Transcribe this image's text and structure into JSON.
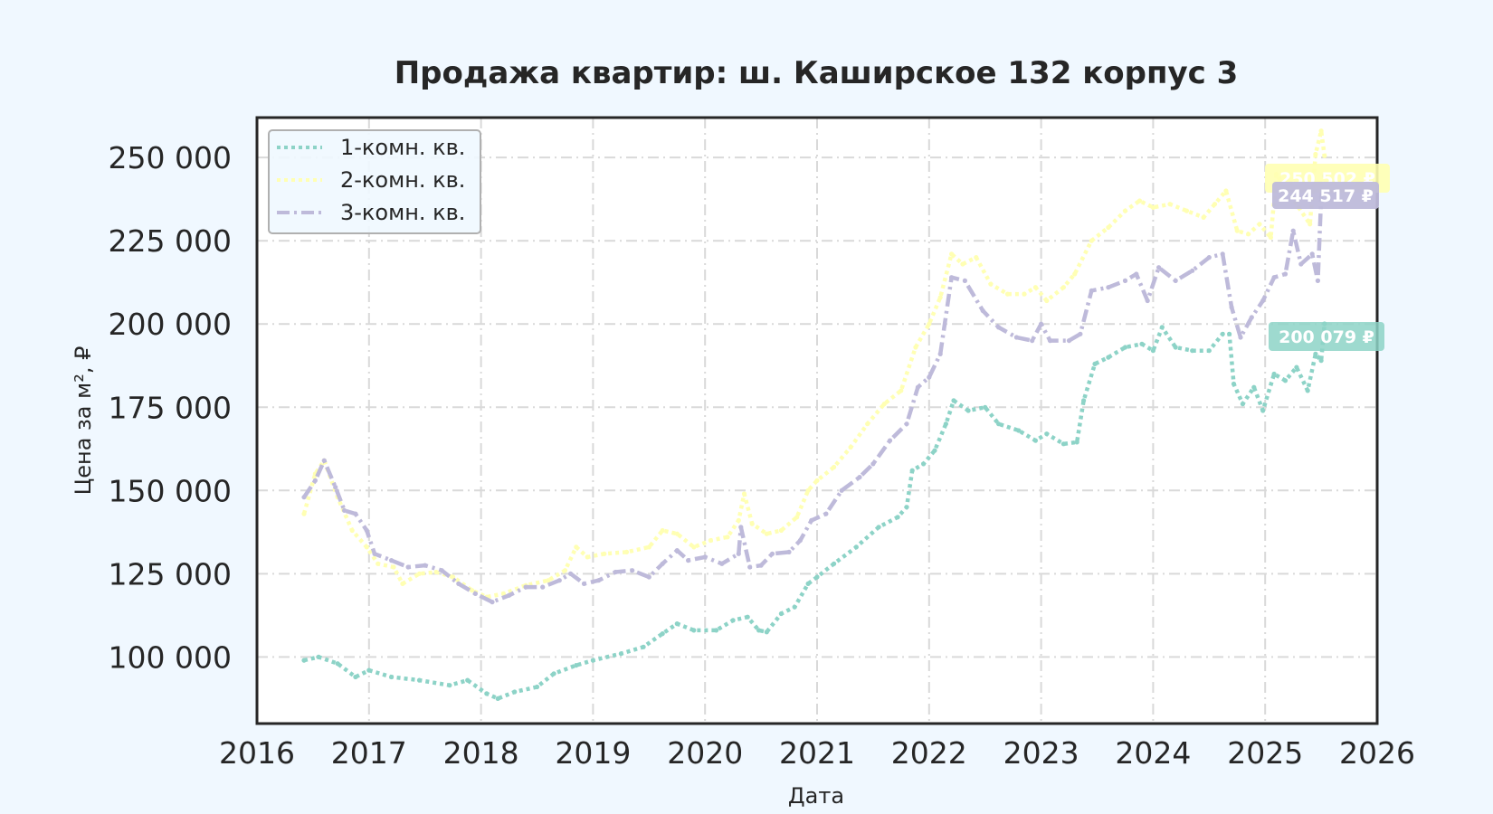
{
  "chart_data": {
    "type": "line",
    "title": "Продажа квартир: ш. Каширское 132 корпус 3",
    "xlabel": "Дата",
    "ylabel": "Цена за м², ₽",
    "xlim": [
      2016,
      2026
    ],
    "ylim": [
      80000,
      262000
    ],
    "x_ticks": [
      "2016",
      "2017",
      "2018",
      "2019",
      "2020",
      "2021",
      "2022",
      "2023",
      "2024",
      "2025",
      "2026"
    ],
    "y_ticks": [
      {
        "value": 100000,
        "label": "100 000"
      },
      {
        "value": 125000,
        "label": "125 000"
      },
      {
        "value": 150000,
        "label": "150 000"
      },
      {
        "value": 175000,
        "label": "175 000"
      },
      {
        "value": 200000,
        "label": "200 000"
      },
      {
        "value": 225000,
        "label": "225 000"
      },
      {
        "value": 250000,
        "label": "250 000"
      }
    ],
    "grid": true,
    "legend_position": "top-left",
    "series": [
      {
        "name": "1-комн. кв.",
        "color": "#8dd3c7",
        "line_style": "dotted",
        "end_label": "200 079 ₽",
        "points": [
          [
            2016.42,
            99000
          ],
          [
            2016.55,
            100000
          ],
          [
            2016.72,
            98000
          ],
          [
            2016.88,
            94000
          ],
          [
            2017.0,
            96000
          ],
          [
            2017.2,
            94000
          ],
          [
            2017.45,
            93000
          ],
          [
            2017.72,
            91500
          ],
          [
            2017.88,
            93000
          ],
          [
            2018.05,
            89000
          ],
          [
            2018.15,
            87500
          ],
          [
            2018.3,
            89500
          ],
          [
            2018.5,
            91000
          ],
          [
            2018.65,
            95000
          ],
          [
            2018.85,
            97500
          ],
          [
            2019.0,
            99000
          ],
          [
            2019.25,
            101000
          ],
          [
            2019.45,
            103000
          ],
          [
            2019.62,
            107000
          ],
          [
            2019.75,
            110000
          ],
          [
            2019.9,
            108000
          ],
          [
            2020.1,
            108000
          ],
          [
            2020.25,
            111000
          ],
          [
            2020.38,
            112000
          ],
          [
            2020.48,
            108000
          ],
          [
            2020.55,
            107500
          ],
          [
            2020.68,
            113000
          ],
          [
            2020.8,
            115000
          ],
          [
            2020.92,
            122000
          ],
          [
            2021.0,
            124000
          ],
          [
            2021.15,
            128000
          ],
          [
            2021.35,
            133000
          ],
          [
            2021.55,
            139000
          ],
          [
            2021.72,
            142000
          ],
          [
            2021.8,
            145000
          ],
          [
            2021.85,
            156000
          ],
          [
            2021.95,
            158000
          ],
          [
            2022.05,
            162000
          ],
          [
            2022.15,
            170000
          ],
          [
            2022.22,
            177000
          ],
          [
            2022.35,
            174000
          ],
          [
            2022.5,
            175000
          ],
          [
            2022.62,
            170000
          ],
          [
            2022.8,
            168000
          ],
          [
            2022.95,
            165000
          ],
          [
            2023.05,
            167000
          ],
          [
            2023.2,
            164000
          ],
          [
            2023.32,
            164500
          ],
          [
            2023.38,
            177000
          ],
          [
            2023.48,
            188000
          ],
          [
            2023.6,
            190000
          ],
          [
            2023.75,
            193000
          ],
          [
            2023.9,
            194000
          ],
          [
            2024.0,
            192000
          ],
          [
            2024.08,
            199000
          ],
          [
            2024.2,
            193000
          ],
          [
            2024.35,
            192000
          ],
          [
            2024.5,
            192000
          ],
          [
            2024.62,
            197000
          ],
          [
            2024.68,
            197000
          ],
          [
            2024.72,
            182000
          ],
          [
            2024.8,
            176000
          ],
          [
            2024.9,
            181000
          ],
          [
            2024.98,
            174000
          ],
          [
            2025.08,
            185000
          ],
          [
            2025.18,
            183000
          ],
          [
            2025.28,
            187000
          ],
          [
            2025.38,
            180000
          ],
          [
            2025.45,
            191000
          ],
          [
            2025.5,
            189000
          ],
          [
            2025.53,
            200079
          ]
        ]
      },
      {
        "name": "2-комн. кв.",
        "color": "#ffffb3",
        "line_style": "dotted",
        "end_label": "250 502 ₽",
        "points": [
          [
            2016.42,
            143000
          ],
          [
            2016.52,
            155000
          ],
          [
            2016.6,
            159000
          ],
          [
            2016.72,
            148000
          ],
          [
            2016.85,
            138000
          ],
          [
            2016.98,
            133000
          ],
          [
            2017.08,
            128000
          ],
          [
            2017.22,
            127000
          ],
          [
            2017.3,
            122000
          ],
          [
            2017.45,
            125000
          ],
          [
            2017.6,
            125500
          ],
          [
            2017.75,
            124000
          ],
          [
            2017.92,
            120000
          ],
          [
            2018.05,
            118000
          ],
          [
            2018.2,
            119000
          ],
          [
            2018.4,
            121500
          ],
          [
            2018.6,
            123000
          ],
          [
            2018.75,
            126000
          ],
          [
            2018.85,
            133000
          ],
          [
            2018.95,
            130000
          ],
          [
            2019.1,
            131000
          ],
          [
            2019.3,
            131500
          ],
          [
            2019.5,
            133000
          ],
          [
            2019.62,
            138000
          ],
          [
            2019.75,
            137000
          ],
          [
            2019.9,
            133000
          ],
          [
            2020.05,
            135000
          ],
          [
            2020.2,
            136000
          ],
          [
            2020.3,
            141000
          ],
          [
            2020.35,
            149000
          ],
          [
            2020.42,
            140000
          ],
          [
            2020.55,
            137000
          ],
          [
            2020.68,
            138000
          ],
          [
            2020.82,
            142000
          ],
          [
            2020.92,
            150000
          ],
          [
            2021.0,
            153000
          ],
          [
            2021.15,
            157000
          ],
          [
            2021.3,
            163000
          ],
          [
            2021.45,
            170000
          ],
          [
            2021.6,
            176000
          ],
          [
            2021.75,
            180000
          ],
          [
            2021.88,
            193000
          ],
          [
            2022.0,
            200000
          ],
          [
            2022.1,
            208000
          ],
          [
            2022.2,
            221000
          ],
          [
            2022.3,
            218000
          ],
          [
            2022.42,
            220000
          ],
          [
            2022.55,
            212000
          ],
          [
            2022.7,
            209000
          ],
          [
            2022.85,
            209000
          ],
          [
            2022.95,
            211000
          ],
          [
            2023.05,
            207000
          ],
          [
            2023.2,
            211000
          ],
          [
            2023.3,
            215000
          ],
          [
            2023.45,
            225000
          ],
          [
            2023.6,
            229000
          ],
          [
            2023.75,
            234000
          ],
          [
            2023.88,
            237000
          ],
          [
            2024.0,
            235000
          ],
          [
            2024.15,
            236000
          ],
          [
            2024.3,
            234000
          ],
          [
            2024.45,
            232000
          ],
          [
            2024.55,
            236000
          ],
          [
            2024.65,
            240000
          ],
          [
            2024.75,
            228000
          ],
          [
            2024.85,
            227000
          ],
          [
            2024.95,
            230000
          ],
          [
            2025.05,
            226000
          ],
          [
            2025.1,
            245000
          ],
          [
            2025.2,
            240000
          ],
          [
            2025.3,
            235000
          ],
          [
            2025.4,
            230000
          ],
          [
            2025.45,
            251000
          ],
          [
            2025.5,
            258000
          ],
          [
            2025.53,
            250502
          ]
        ]
      },
      {
        "name": "3-комн. кв.",
        "color": "#bebada",
        "line_style": "dash-dot",
        "end_label": "244 517 ₽",
        "points": [
          [
            2016.42,
            148000
          ],
          [
            2016.52,
            153000
          ],
          [
            2016.6,
            159000
          ],
          [
            2016.7,
            151000
          ],
          [
            2016.78,
            144000
          ],
          [
            2016.88,
            143000
          ],
          [
            2016.98,
            138000
          ],
          [
            2017.05,
            131000
          ],
          [
            2017.2,
            129000
          ],
          [
            2017.35,
            127000
          ],
          [
            2017.5,
            127500
          ],
          [
            2017.65,
            126000
          ],
          [
            2017.8,
            122000
          ],
          [
            2017.95,
            119000
          ],
          [
            2018.1,
            116500
          ],
          [
            2018.25,
            118500
          ],
          [
            2018.4,
            121000
          ],
          [
            2018.55,
            121000
          ],
          [
            2018.7,
            123000
          ],
          [
            2018.8,
            125000
          ],
          [
            2018.92,
            122000
          ],
          [
            2019.05,
            123000
          ],
          [
            2019.2,
            125500
          ],
          [
            2019.35,
            126000
          ],
          [
            2019.5,
            124000
          ],
          [
            2019.62,
            128000
          ],
          [
            2019.75,
            132000
          ],
          [
            2019.85,
            129000
          ],
          [
            2020.0,
            130000
          ],
          [
            2020.15,
            128000
          ],
          [
            2020.3,
            131000
          ],
          [
            2020.32,
            139000
          ],
          [
            2020.4,
            127000
          ],
          [
            2020.5,
            127500
          ],
          [
            2020.6,
            131000
          ],
          [
            2020.75,
            131500
          ],
          [
            2020.85,
            135000
          ],
          [
            2020.95,
            141000
          ],
          [
            2021.08,
            143000
          ],
          [
            2021.22,
            150000
          ],
          [
            2021.38,
            154000
          ],
          [
            2021.5,
            158000
          ],
          [
            2021.65,
            165000
          ],
          [
            2021.8,
            170000
          ],
          [
            2021.9,
            181000
          ],
          [
            2022.0,
            184000
          ],
          [
            2022.1,
            191000
          ],
          [
            2022.2,
            214000
          ],
          [
            2022.32,
            213000
          ],
          [
            2022.48,
            204000
          ],
          [
            2022.62,
            199000
          ],
          [
            2022.78,
            196000
          ],
          [
            2022.92,
            195000
          ],
          [
            2023.0,
            200000
          ],
          [
            2023.08,
            195000
          ],
          [
            2023.25,
            195000
          ],
          [
            2023.35,
            197000
          ],
          [
            2023.45,
            210000
          ],
          [
            2023.6,
            211000
          ],
          [
            2023.75,
            213000
          ],
          [
            2023.85,
            215000
          ],
          [
            2023.95,
            207000
          ],
          [
            2024.05,
            217000
          ],
          [
            2024.2,
            213000
          ],
          [
            2024.35,
            216000
          ],
          [
            2024.5,
            220000
          ],
          [
            2024.62,
            221000
          ],
          [
            2024.7,
            205000
          ],
          [
            2024.78,
            196000
          ],
          [
            2024.88,
            202000
          ],
          [
            2024.98,
            207000
          ],
          [
            2025.08,
            214000
          ],
          [
            2025.18,
            215000
          ],
          [
            2025.25,
            228000
          ],
          [
            2025.32,
            218000
          ],
          [
            2025.42,
            221000
          ],
          [
            2025.47,
            213000
          ],
          [
            2025.5,
            238000
          ],
          [
            2025.53,
            244517
          ]
        ]
      }
    ]
  }
}
